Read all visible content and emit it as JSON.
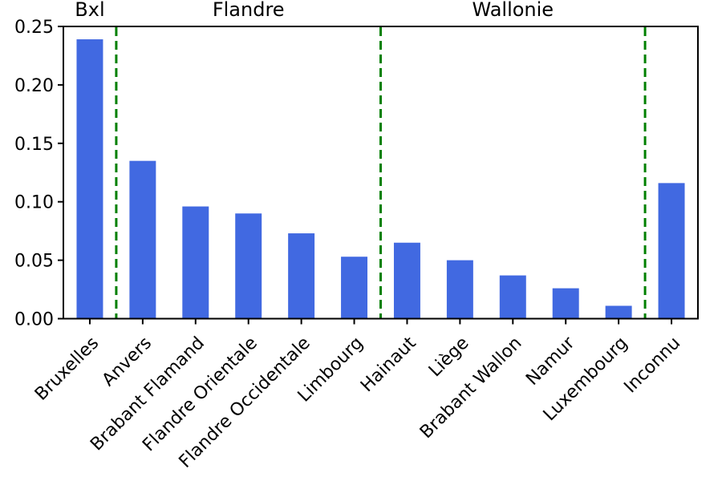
{
  "chart_data": {
    "type": "bar",
    "title": "",
    "xlabel": "",
    "ylabel": "",
    "categories": [
      "Bruxelles",
      "Anvers",
      "Brabant Flamand",
      "Flandre Orientale",
      "Flandre Occidentale",
      "Limbourg",
      "Hainaut",
      "Liège",
      "Brabant Wallon",
      "Namur",
      "Luxembourg",
      "Inconnu"
    ],
    "values": [
      0.239,
      0.135,
      0.096,
      0.09,
      0.073,
      0.053,
      0.065,
      0.05,
      0.037,
      0.026,
      0.011,
      0.116
    ],
    "ylim": [
      0,
      0.25
    ],
    "yticks": [
      "0.00",
      "0.05",
      "0.10",
      "0.15",
      "0.20",
      "0.25"
    ],
    "grid": false,
    "legend": null,
    "x_tick_rotation_deg": 45,
    "bar_color": "#4169e1",
    "axis_color": "#000000",
    "region_annotations": {
      "line_color": "#008000",
      "line_style": "dashed",
      "dividers_after_category_index": [
        0,
        5,
        10
      ],
      "regions": [
        {
          "label": "Bxl",
          "from": 0,
          "to": 0
        },
        {
          "label": "Flandre",
          "from": 1,
          "to": 5
        },
        {
          "label": "Wallonie",
          "from": 6,
          "to": 10
        }
      ]
    }
  }
}
